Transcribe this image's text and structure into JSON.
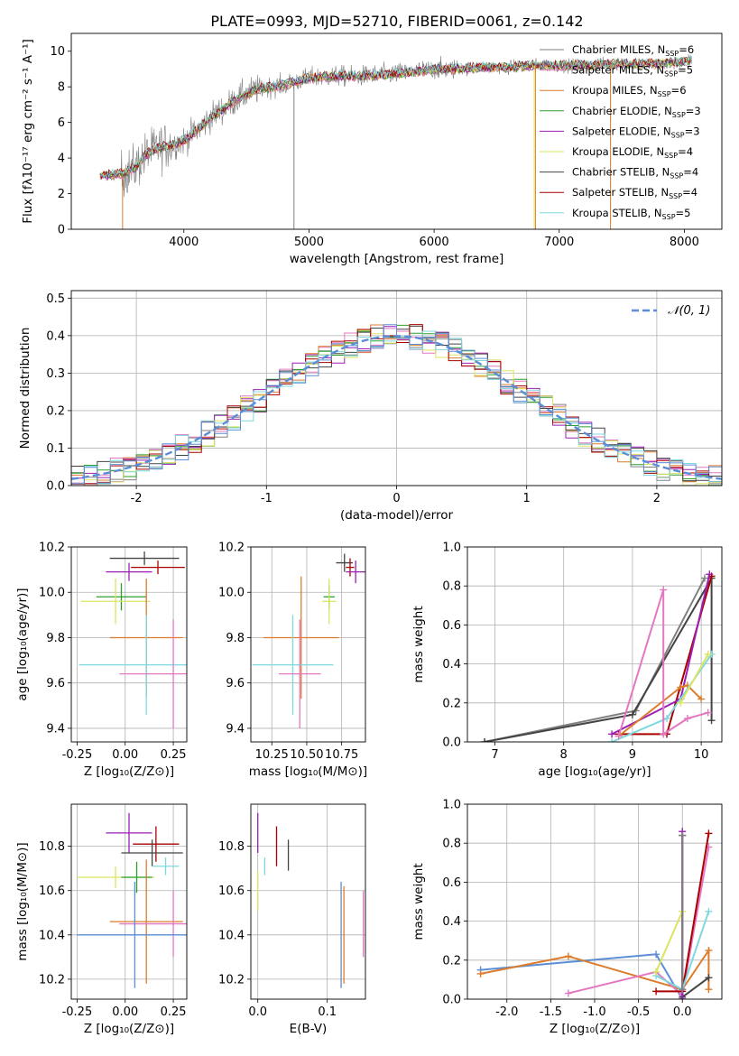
{
  "figure": {
    "title": "PLATE=0993, MJD=52710, FIBERID=0061, z=0.142"
  },
  "colors": {
    "Chabrier MILES": "#808080",
    "Salpeter MILES": "#e377c2",
    "Kroupa MILES": "#dd7c2c",
    "Chabrier ELODIE": "#2ca02c",
    "Salpeter ELODIE": "#9b1fb3",
    "Kroupa ELODIE": "#dbe561",
    "Chabrier STELIB": "#444444",
    "Salpeter STELIB": "#aa0000",
    "Kroupa STELIB": "#7fd8dd",
    "data": "#7f7f7f",
    "normal": "#5b8ed6",
    "extra_blue": "#5b8ed6"
  },
  "chart_data": [
    {
      "id": "spectrum",
      "type": "line",
      "xlabel": "wavelength [Angstrom, rest frame]",
      "ylabel": "Flux [fλ10⁻¹⁷ erg cm⁻² s⁻¹ A⁻¹]",
      "xlim": [
        3100,
        8300
      ],
      "ylim": [
        0,
        11
      ],
      "xticks": [
        4000,
        5000,
        6000,
        7000,
        8000
      ],
      "yticks": [
        0,
        2,
        4,
        6,
        8,
        10
      ],
      "grid": false,
      "legend_position": "top-right",
      "legend": [
        {
          "label": "Chabrier MILES",
          "nssp": "6"
        },
        {
          "label": "Salpeter MILES",
          "nssp": "5"
        },
        {
          "label": "Kroupa MILES",
          "nssp": "6"
        },
        {
          "label": "Chabrier ELODIE",
          "nssp": "3"
        },
        {
          "label": "Salpeter ELODIE",
          "nssp": "3"
        },
        {
          "label": "Kroupa ELODIE",
          "nssp": "4"
        },
        {
          "label": "Chabrier STELIB",
          "nssp": "4"
        },
        {
          "label": "Salpeter STELIB",
          "nssp": "4"
        },
        {
          "label": "Kroupa STELIB",
          "nssp": "5"
        }
      ],
      "continuum": {
        "x": [
          3330,
          3500,
          3600,
          3700,
          3800,
          3900,
          4000,
          4100,
          4200,
          4300,
          4400,
          4500,
          4600,
          4800,
          5000,
          5200,
          5400,
          5600,
          5800,
          6000,
          6200,
          6400,
          6600,
          6800,
          7000,
          7200,
          7400,
          7600,
          7800,
          8000,
          8060
        ],
        "y": [
          3.0,
          3.1,
          3.4,
          4.2,
          4.6,
          4.7,
          5.0,
          5.5,
          6.2,
          6.7,
          7.2,
          7.6,
          7.9,
          8.1,
          8.5,
          8.6,
          8.6,
          8.7,
          8.8,
          9.0,
          9.0,
          9.1,
          9.1,
          9.2,
          9.2,
          9.2,
          9.3,
          9.3,
          9.3,
          9.4,
          9.5
        ]
      },
      "spikes": [
        {
          "x": 3510,
          "color": "Kroupa MILES"
        },
        {
          "x": 4880,
          "color": "data"
        },
        {
          "x": 6810,
          "color": "Kroupa MILES"
        },
        {
          "x": 6800,
          "color": "Kroupa ELODIE"
        },
        {
          "x": 7410,
          "color": "Kroupa MILES"
        }
      ]
    },
    {
      "id": "residuals",
      "type": "histogram",
      "xlabel": "(data-model)/error",
      "ylabel": "Normed distribution",
      "xlim": [
        -2.5,
        2.5
      ],
      "ylim": [
        0,
        0.52
      ],
      "xticks": [
        -2,
        -1,
        0,
        1,
        2
      ],
      "yticks": [
        0.0,
        0.1,
        0.2,
        0.3,
        0.4,
        0.5
      ],
      "grid": true,
      "legend_position": "top-right",
      "legend": [
        {
          "label": "𝒩(0, 1)"
        }
      ],
      "bin_width": 0.1,
      "bin_start": -2.5
    },
    {
      "id": "age_vs_Z",
      "type": "errorbar",
      "xlabel": "Z [log₁₀(Z/Z⊙)]",
      "ylabel": "age  [log₁₀(age/yr)]",
      "xlim": [
        -0.28,
        0.32
      ],
      "ylim": [
        9.34,
        10.2
      ],
      "xticks": [
        -0.25,
        0.0,
        0.25
      ],
      "yticks": [
        9.4,
        9.6,
        9.8,
        10.0,
        10.2
      ],
      "grid": true,
      "points": [
        {
          "series": "Chabrier STELIB",
          "x": 0.1,
          "xerr": 0.18,
          "y": 10.15,
          "yerr": 0.03
        },
        {
          "series": "Salpeter STELIB",
          "x": 0.17,
          "xerr": 0.14,
          "y": 10.11,
          "yerr": 0.03
        },
        {
          "series": "Salpeter ELODIE",
          "x": 0.02,
          "xerr": 0.12,
          "y": 10.09,
          "yerr": 0.04
        },
        {
          "series": "Chabrier ELODIE",
          "x": -0.02,
          "xerr": 0.13,
          "y": 9.98,
          "yerr": 0.06
        },
        {
          "series": "Kroupa ELODIE",
          "x": -0.05,
          "xerr": 0.18,
          "y": 9.96,
          "yerr": 0.1
        },
        {
          "series": "Kroupa MILES",
          "x": 0.11,
          "xerr": 0.19,
          "y": 9.8,
          "yerr": 0.26
        },
        {
          "series": "Kroupa STELIB",
          "x": 0.11,
          "xerr": 0.35,
          "y": 9.68,
          "yerr": 0.22
        },
        {
          "series": "Salpeter MILES",
          "x": 0.25,
          "xerr": 0.28,
          "y": 9.64,
          "yerr": 0.24
        }
      ]
    },
    {
      "id": "age_vs_mass",
      "type": "errorbar",
      "xlabel": "mass [log₁₀(M/M⊙)]",
      "ylabel": "",
      "xlim": [
        10.1,
        10.92
      ],
      "ylim": [
        9.34,
        10.2
      ],
      "xticks": [
        10.25,
        10.5,
        10.75
      ],
      "yticks": [
        9.4,
        9.6,
        9.8,
        10.0,
        10.2
      ],
      "grid": true,
      "points": [
        {
          "series": "Chabrier STELIB",
          "x": 10.77,
          "xerr": 0.06,
          "y": 10.13,
          "yerr": 0.04
        },
        {
          "series": "Salpeter STELIB",
          "x": 10.81,
          "xerr": 0.03,
          "y": 10.11,
          "yerr": 0.04
        },
        {
          "series": "Salpeter ELODIE",
          "x": 10.85,
          "xerr": 0.07,
          "y": 10.09,
          "yerr": 0.05
        },
        {
          "series": "Chabrier ELODIE",
          "x": 10.66,
          "xerr": 0.04,
          "y": 9.98,
          "yerr": 0.05
        },
        {
          "series": "Kroupa ELODIE",
          "x": 10.66,
          "xerr": 0.05,
          "y": 9.96,
          "yerr": 0.1
        },
        {
          "series": "Kroupa MILES",
          "x": 10.46,
          "xerr": 0.27,
          "y": 9.8,
          "yerr": 0.27
        },
        {
          "series": "Kroupa STELIB",
          "x": 10.4,
          "xerr": 0.29,
          "y": 9.68,
          "yerr": 0.22
        },
        {
          "series": "Salpeter MILES",
          "x": 10.45,
          "xerr": 0.15,
          "y": 9.64,
          "yerr": 0.24
        }
      ]
    },
    {
      "id": "weight_vs_age",
      "type": "line",
      "xlabel": "age  [log₁₀(age/yr)]",
      "ylabel": "mass weight",
      "xlim": [
        6.6,
        10.3
      ],
      "ylim": [
        0,
        1.0
      ],
      "xticks": [
        7,
        8,
        9,
        10
      ],
      "yticks": [
        0.0,
        0.2,
        0.4,
        0.6,
        0.8,
        1.0
      ],
      "grid": true,
      "series": [
        {
          "name": "Chabrier MILES",
          "x": [
            6.85,
            9.05,
            10.05
          ],
          "y": [
            0.0,
            0.16,
            0.84
          ]
        },
        {
          "name": "Chabrier STELIB",
          "x": [
            6.85,
            9.0,
            10.15,
            10.15
          ],
          "y": [
            0.0,
            0.14,
            0.84,
            0.11
          ]
        },
        {
          "name": "Salpeter STELIB",
          "x": [
            8.8,
            9.5,
            10.15
          ],
          "y": [
            0.04,
            0.04,
            0.85
          ]
        },
        {
          "name": "Salpeter ELODIE",
          "x": [
            8.7,
            9.7,
            10.12
          ],
          "y": [
            0.04,
            0.22,
            0.86
          ]
        },
        {
          "name": "Kroupa MILES",
          "x": [
            8.8,
            9.7,
            9.8,
            10.0
          ],
          "y": [
            0.03,
            0.28,
            0.29,
            0.22
          ]
        },
        {
          "name": "Kroupa STELIB",
          "x": [
            8.7,
            9.5,
            10.15
          ],
          "y": [
            0.0,
            0.12,
            0.45
          ]
        },
        {
          "name": "Kroupa ELODIE",
          "x": [
            9.7,
            10.1
          ],
          "y": [
            0.2,
            0.45
          ]
        },
        {
          "name": "Salpeter MILES",
          "x": [
            8.8,
            9.45,
            9.45,
            9.8,
            10.1
          ],
          "y": [
            0.03,
            0.78,
            0.04,
            0.12,
            0.15
          ]
        }
      ]
    },
    {
      "id": "mass_vs_Z",
      "type": "errorbar",
      "xlabel": "Z [log₁₀(Z/Z⊙)]",
      "ylabel": "mass [log₁₀(M/M⊙)]",
      "xlim": [
        -0.28,
        0.32
      ],
      "ylim": [
        10.11,
        10.99
      ],
      "xticks": [
        -0.25,
        0.0,
        0.25
      ],
      "yticks": [
        10.2,
        10.4,
        10.6,
        10.8
      ],
      "grid": true,
      "points": [
        {
          "series": "Salpeter ELODIE",
          "x": 0.02,
          "xerr": 0.12,
          "y": 10.86,
          "yerr": 0.09
        },
        {
          "series": "Salpeter STELIB",
          "x": 0.16,
          "xerr": 0.12,
          "y": 10.81,
          "yerr": 0.08
        },
        {
          "series": "Chabrier STELIB",
          "x": 0.14,
          "xerr": 0.16,
          "y": 10.77,
          "yerr": 0.06
        },
        {
          "series": "Kroupa STELIB",
          "x": 0.21,
          "xerr": 0.07,
          "y": 10.71,
          "yerr": 0.04
        },
        {
          "series": "Kroupa ELODIE",
          "x": -0.05,
          "xerr": 0.2,
          "y": 10.66,
          "yerr": 0.05
        },
        {
          "series": "Chabrier ELODIE",
          "x": 0.06,
          "xerr": 0.08,
          "y": 10.66,
          "yerr": 0.07
        },
        {
          "series": "Kroupa MILES",
          "x": 0.11,
          "xerr": 0.19,
          "y": 10.46,
          "yerr": 0.28
        },
        {
          "series": "Salpeter MILES",
          "x": 0.25,
          "xerr": 0.28,
          "y": 10.45,
          "yerr": 0.15
        },
        {
          "series": "extra_blue",
          "x": 0.05,
          "xerr": 0.3,
          "y": 10.4,
          "yerr": 0.24
        }
      ]
    },
    {
      "id": "mass_vs_ebv",
      "type": "errorbar",
      "xlabel": "E(B-V)",
      "ylabel": "",
      "xlim": [
        -0.01,
        0.155
      ],
      "ylim": [
        10.11,
        10.99
      ],
      "xticks": [
        0.0,
        0.1
      ],
      "xtick_labels": [
        "0.0",
        "0.1"
      ],
      "yticks": [
        10.2,
        10.4,
        10.6,
        10.8
      ],
      "grid": true,
      "points": [
        {
          "series": "Salpeter ELODIE",
          "x": 0.0,
          "y": 10.86,
          "yerr": 0.09
        },
        {
          "series": "Kroupa ELODIE",
          "x": 0.0,
          "y": 10.6,
          "yerr": 0.09
        },
        {
          "series": "Kroupa STELIB",
          "x": 0.01,
          "y": 10.71,
          "yerr": 0.04
        },
        {
          "series": "Salpeter STELIB",
          "x": 0.027,
          "y": 10.8,
          "yerr": 0.09
        },
        {
          "series": "Chabrier STELIB",
          "x": 0.044,
          "y": 10.76,
          "yerr": 0.07
        },
        {
          "series": "extra_blue",
          "x": 0.12,
          "y": 10.4,
          "yerr": 0.24
        },
        {
          "series": "Kroupa MILES",
          "x": 0.124,
          "y": 10.4,
          "yerr": 0.22
        },
        {
          "series": "Salpeter MILES",
          "x": 0.152,
          "y": 10.45,
          "yerr": 0.15
        }
      ]
    },
    {
      "id": "weight_vs_Z",
      "type": "line",
      "xlabel": "Z [log₁₀(Z/Z⊙)]",
      "ylabel": "mass weight",
      "xlim": [
        -2.45,
        0.45
      ],
      "ylim": [
        0,
        1.0
      ],
      "xticks": [
        -2.0,
        -1.5,
        -1.0,
        -0.5,
        0.0
      ],
      "yticks": [
        0.0,
        0.2,
        0.4,
        0.6,
        0.8,
        1.0
      ],
      "grid": true,
      "series": [
        {
          "name": "extra_blue",
          "x": [
            -2.3,
            -0.3,
            0.0
          ],
          "y": [
            0.15,
            0.23,
            0.0
          ]
        },
        {
          "name": "Kroupa MILES",
          "x": [
            -2.3,
            -1.3,
            0.0,
            0.3,
            0.3
          ],
          "y": [
            0.13,
            0.22,
            0.05,
            0.25,
            0.05
          ]
        },
        {
          "name": "Salpeter MILES",
          "x": [
            -1.3,
            -0.3,
            0.0,
            0.3
          ],
          "y": [
            0.03,
            0.14,
            0.02,
            0.78
          ]
        },
        {
          "name": "Chabrier STELIB",
          "x": [
            0.0,
            0.0,
            0.3
          ],
          "y": [
            0.84,
            0.01,
            0.11
          ]
        },
        {
          "name": "Salpeter STELIB",
          "x": [
            -0.3,
            0.0,
            0.3
          ],
          "y": [
            0.04,
            0.04,
            0.85
          ]
        },
        {
          "name": "Salpeter ELODIE",
          "x": [
            0.0,
            0.0
          ],
          "y": [
            0.86,
            0.0
          ]
        },
        {
          "name": "Kroupa STELIB",
          "x": [
            -0.3,
            0.0,
            0.3
          ],
          "y": [
            0.12,
            0.05,
            0.45
          ]
        },
        {
          "name": "Kroupa ELODIE",
          "x": [
            -0.3,
            0.0
          ],
          "y": [
            0.14,
            0.45
          ]
        },
        {
          "name": "Chabrier MILES",
          "x": [
            0.0,
            0.0
          ],
          "y": [
            0.84,
            0.05
          ]
        }
      ]
    }
  ]
}
